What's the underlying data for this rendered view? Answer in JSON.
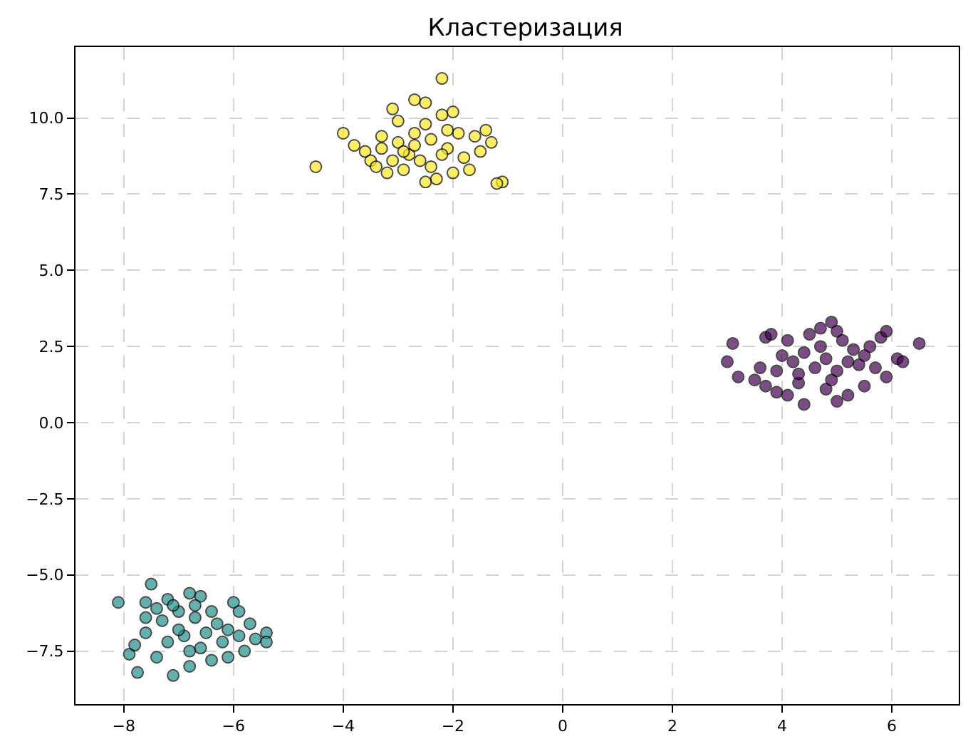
{
  "chart_data": {
    "type": "scatter",
    "title": "Кластеризация",
    "xlim": [
      -8.88,
      7.22
    ],
    "xticks": [
      {
        "value": -8,
        "label": "−8"
      },
      {
        "value": -6,
        "label": "−6"
      },
      {
        "value": -4,
        "label": "−4"
      },
      {
        "value": -2,
        "label": "−2"
      },
      0,
      2,
      4,
      6
    ],
    "ylim": [
      -9.24,
      12.33
    ],
    "yticks": [
      {
        "value": -7.5,
        "label": "−7.5"
      },
      {
        "value": -5,
        "label": "−5.0"
      },
      {
        "value": -2.5,
        "label": "−2.5"
      },
      {
        "value": 0,
        "label": "0.0"
      },
      {
        "value": 2.5,
        "label": "2.5"
      },
      {
        "value": 5,
        "label": "5.0"
      },
      {
        "value": 7.5,
        "label": "7.5"
      },
      {
        "value": 10,
        "label": "10.0"
      }
    ],
    "grid": true,
    "line_style": "dashed",
    "marker": "circle",
    "series": [
      {
        "color": "#440154",
        "x": [
          3.0,
          3.1,
          3.2,
          3.5,
          3.6,
          3.7,
          3.8,
          3.7,
          3.9,
          4.1,
          4.3,
          4.4,
          4.5,
          4.7,
          4.9,
          5.0,
          5.1,
          5.3,
          5.6,
          5.8,
          5.9,
          6.1,
          6.2,
          6.5,
          5.9,
          5.5,
          5.2,
          5.0,
          4.8,
          4.2,
          4.4,
          4.6,
          4.8,
          5.0,
          5.2,
          4.0,
          4.3,
          4.7,
          5.4,
          5.7,
          3.9,
          4.9,
          4.1,
          5.5
        ],
        "values": [
          2.0,
          2.6,
          1.5,
          1.4,
          1.8,
          2.8,
          2.9,
          1.2,
          1.0,
          0.9,
          1.3,
          0.6,
          2.9,
          3.1,
          3.3,
          3.0,
          2.7,
          2.4,
          2.5,
          2.8,
          3.0,
          2.1,
          2.0,
          2.6,
          1.5,
          1.2,
          0.9,
          0.7,
          1.1,
          2.0,
          2.3,
          1.8,
          2.1,
          1.7,
          2.0,
          2.2,
          1.6,
          2.5,
          1.9,
          1.8,
          1.7,
          1.4,
          2.7,
          2.2
        ]
      },
      {
        "color": "#21918c",
        "x": [
          -8.1,
          -7.9,
          -7.75,
          -7.8,
          -7.5,
          -7.6,
          -7.2,
          -6.8,
          -6.6,
          -6.0,
          -5.9,
          -5.7,
          -5.4,
          -5.4,
          -5.6,
          -5.8,
          -6.1,
          -6.4,
          -6.8,
          -7.1,
          -7.4,
          -7.6,
          -7.3,
          -7.0,
          -6.7,
          -6.5,
          -6.3,
          -6.9,
          -7.2,
          -6.6,
          -6.2,
          -7.0,
          -6.8,
          -7.4,
          -6.4,
          -6.1,
          -7.6,
          -7.1,
          -6.7,
          -5.9
        ],
        "values": [
          -5.9,
          -7.6,
          -8.2,
          -7.3,
          -5.3,
          -5.9,
          -5.8,
          -5.6,
          -5.7,
          -5.9,
          -6.2,
          -6.6,
          -6.9,
          -7.2,
          -7.1,
          -7.5,
          -7.7,
          -7.8,
          -8.0,
          -8.3,
          -7.7,
          -6.4,
          -6.5,
          -6.2,
          -6.4,
          -6.9,
          -6.6,
          -7.0,
          -7.2,
          -7.4,
          -7.2,
          -6.8,
          -7.5,
          -6.1,
          -6.2,
          -6.8,
          -6.9,
          -6.0,
          -6.0,
          -7.0
        ]
      },
      {
        "color": "#fde725",
        "x": [
          -4.5,
          -4.0,
          -2.2,
          -2.7,
          -2.5,
          -3.1,
          -1.1,
          -1.2,
          -1.4,
          -1.3,
          -1.6,
          -3.8,
          -3.6,
          -3.5,
          -3.2,
          -2.9,
          -2.5,
          -2.3,
          -2.0,
          -1.7,
          -1.8,
          -2.1,
          -2.4,
          -2.7,
          -3.0,
          -3.3,
          -2.8,
          -2.6,
          -2.2,
          -1.9,
          -2.2,
          -2.0,
          -3.0,
          -3.3,
          -2.5,
          -2.9,
          -2.4,
          -3.4,
          -1.5,
          -2.7,
          -2.1,
          -3.1
        ],
        "values": [
          8.4,
          9.5,
          11.3,
          10.6,
          10.5,
          10.3,
          7.9,
          7.85,
          9.6,
          9.2,
          9.4,
          9.1,
          8.9,
          8.6,
          8.2,
          8.3,
          7.9,
          8.0,
          8.2,
          8.3,
          8.7,
          9.0,
          9.3,
          9.5,
          9.2,
          9.0,
          8.8,
          8.6,
          8.8,
          9.5,
          10.1,
          10.2,
          9.9,
          9.4,
          9.8,
          8.9,
          8.4,
          8.4,
          8.9,
          9.1,
          9.6,
          8.6
        ]
      }
    ]
  }
}
